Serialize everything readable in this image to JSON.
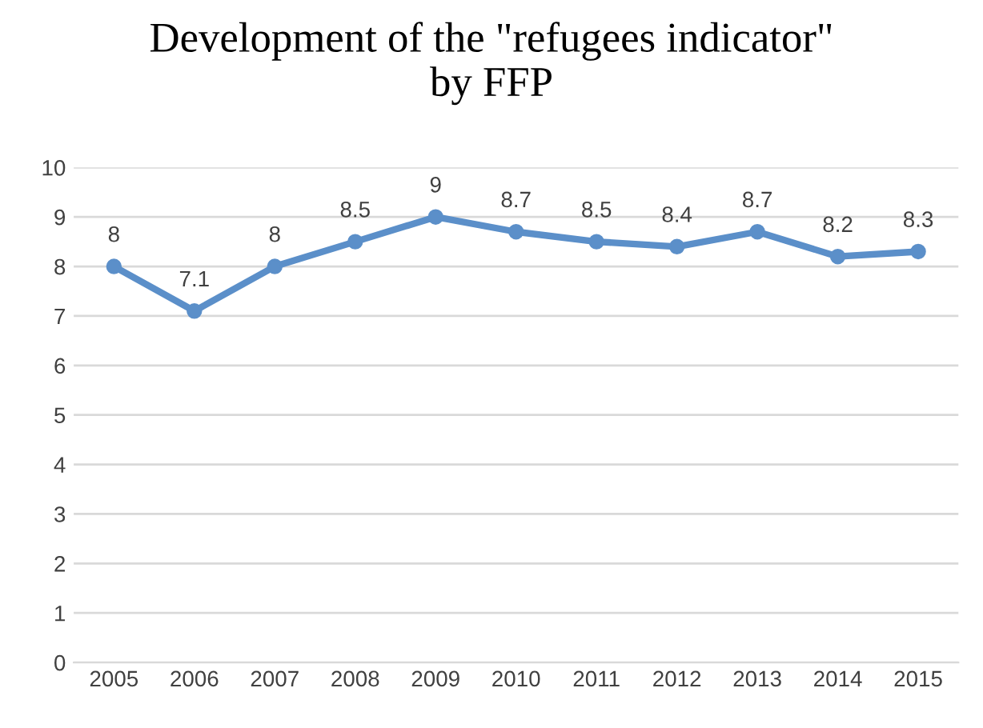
{
  "chart_data": {
    "type": "line",
    "title": "Development of the \"refugees indicator\"\nby FFP",
    "categories": [
      "2005",
      "2006",
      "2007",
      "2008",
      "2009",
      "2010",
      "2011",
      "2012",
      "2013",
      "2014",
      "2015"
    ],
    "series": [
      {
        "color": "#5b8fc9",
        "values": [
          8,
          7.1,
          8,
          8.5,
          9,
          8.7,
          8.5,
          8.4,
          8.7,
          8.2,
          8.3
        ]
      }
    ],
    "ylim": [
      0,
      10
    ],
    "yticks": [
      0,
      1,
      2,
      3,
      4,
      5,
      6,
      7,
      8,
      9,
      10
    ],
    "grid": "y",
    "data_labels": true,
    "marker": "circle",
    "line_style": "solid",
    "legend": false
  }
}
